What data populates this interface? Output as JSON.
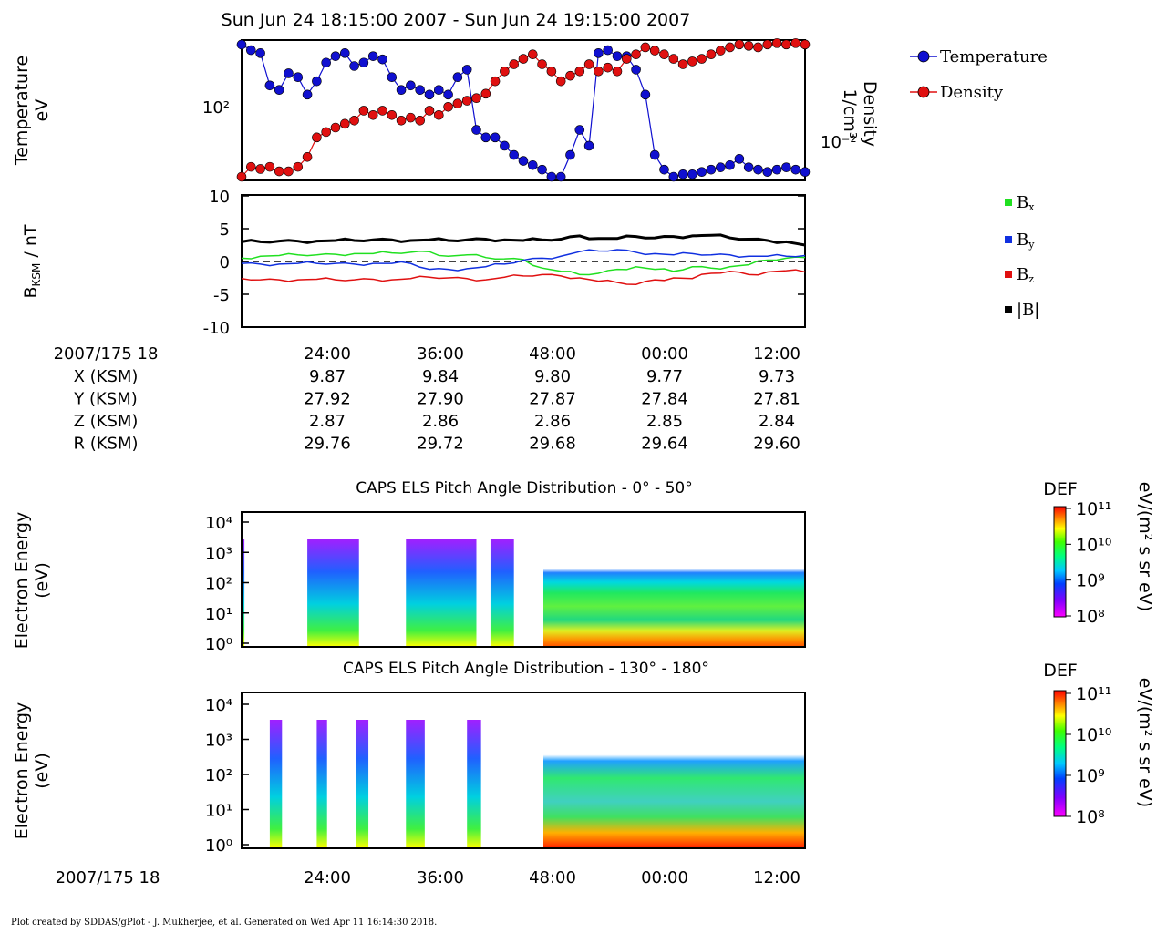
{
  "header": {
    "title": "Sun Jun 24 18:15:00 2007 - Sun Jun 24 19:15:00 2007"
  },
  "colors": {
    "temperature": "#1010d0",
    "density": "#e01010",
    "bx": "#20e020",
    "by": "#1030e0",
    "bz": "#e01010",
    "btot": "#000000"
  },
  "chart_data": [
    {
      "id": "plasma-moments",
      "type": "scatter",
      "ylabel": "Temperature\neV",
      "y2label": "Density\n1/cm³",
      "y_tick_label": "10²",
      "y2_tick_label": "10⁻²",
      "legend": [
        "Temperature",
        "Density"
      ],
      "legend_position": "right",
      "x_minutes": [
        0,
        1,
        2,
        3,
        4,
        5,
        6,
        7,
        8,
        9,
        10,
        11,
        12,
        13,
        14,
        15,
        16,
        17,
        18,
        19,
        20,
        21,
        22,
        23,
        24,
        25,
        26,
        27,
        28,
        29,
        30,
        31,
        32,
        33,
        34,
        35,
        36,
        37,
        38,
        39,
        40,
        41,
        42,
        43,
        44,
        45,
        46,
        47,
        48,
        49,
        50,
        51,
        52,
        53,
        54,
        55,
        56,
        57,
        58,
        59,
        60
      ],
      "series": [
        {
          "name": "Temperature",
          "values": [
            160,
            150,
            145,
            100,
            95,
            115,
            110,
            90,
            105,
            130,
            140,
            145,
            125,
            130,
            140,
            135,
            110,
            95,
            100,
            95,
            90,
            95,
            90,
            110,
            120,
            60,
            55,
            55,
            50,
            45,
            42,
            40,
            38,
            35,
            35,
            45,
            60,
            50,
            145,
            150,
            140,
            140,
            120,
            90,
            45,
            38,
            35,
            36,
            36,
            37,
            38,
            39,
            40,
            43,
            39,
            38,
            37,
            38,
            39,
            38,
            37
          ]
        },
        {
          "name": "Density",
          "values": [
            0.004,
            0.006,
            0.0055,
            0.006,
            0.005,
            0.005,
            0.006,
            0.009,
            0.02,
            0.025,
            0.03,
            0.035,
            0.04,
            0.06,
            0.05,
            0.06,
            0.05,
            0.04,
            0.045,
            0.04,
            0.06,
            0.05,
            0.07,
            0.08,
            0.09,
            0.1,
            0.12,
            0.2,
            0.3,
            0.4,
            0.5,
            0.6,
            0.4,
            0.3,
            0.2,
            0.25,
            0.3,
            0.4,
            0.3,
            0.35,
            0.3,
            0.5,
            0.6,
            0.8,
            0.7,
            0.6,
            0.5,
            0.4,
            0.45,
            0.5,
            0.6,
            0.7,
            0.8,
            0.9,
            0.85,
            0.8,
            0.9,
            0.95,
            0.9,
            0.95,
            0.9
          ]
        }
      ]
    },
    {
      "id": "magnetic-field",
      "type": "line",
      "ylabel": "BKSM / nT",
      "ylim": [
        -10,
        10
      ],
      "y_ticks": [
        10,
        5,
        0,
        -5,
        -10
      ],
      "legend_position": "right",
      "x_minutes": [
        0,
        2,
        4,
        6,
        8,
        10,
        12,
        14,
        16,
        18,
        20,
        22,
        24,
        26,
        28,
        30,
        32,
        34,
        36,
        38,
        40,
        42,
        44,
        46,
        48,
        50,
        52,
        54,
        56,
        58,
        60
      ],
      "series": [
        {
          "name": "Bx",
          "label_main": "B",
          "label_sub": "x",
          "values": [
            0.5,
            0.8,
            0.9,
            1.0,
            1.0,
            1.1,
            1.2,
            1.2,
            1.3,
            1.4,
            1.5,
            0.8,
            1.0,
            0.6,
            0.4,
            0.3,
            -1.0,
            -1.5,
            -2.0,
            -1.8,
            -1.2,
            -0.8,
            -1.2,
            -1.5,
            -0.8,
            -1.0,
            -0.8,
            -0.5,
            0.2,
            0.5,
            0.6
          ]
        },
        {
          "name": "By",
          "label_main": "B",
          "label_sub": "y",
          "values": [
            -0.3,
            -0.4,
            -0.4,
            -0.3,
            -0.3,
            -0.3,
            -0.4,
            -0.3,
            -0.3,
            -0.3,
            -1.2,
            -1.2,
            -1.1,
            -0.8,
            -0.4,
            0.2,
            0.5,
            0.8,
            1.5,
            1.6,
            1.8,
            1.4,
            1.2,
            1.0,
            1.2,
            1.0,
            1.0,
            0.8,
            0.8,
            0.8,
            0.9
          ]
        },
        {
          "name": "Bz",
          "label_main": "B",
          "label_sub": "z",
          "values": [
            -2.6,
            -2.8,
            -2.8,
            -2.8,
            -2.7,
            -2.8,
            -2.8,
            -2.7,
            -2.8,
            -2.6,
            -2.4,
            -2.5,
            -2.6,
            -2.8,
            -2.4,
            -2.2,
            -2.0,
            -2.2,
            -2.5,
            -3.0,
            -3.2,
            -3.5,
            -2.8,
            -2.5,
            -2.6,
            -1.8,
            -1.5,
            -2.0,
            -1.6,
            -1.4,
            -1.6
          ]
        },
        {
          "name": "|B|",
          "label_main": "|B|",
          "label_sub": "",
          "values": [
            3.0,
            3.0,
            3.1,
            3.1,
            3.1,
            3.2,
            3.2,
            3.3,
            3.3,
            3.2,
            3.3,
            3.2,
            3.3,
            3.4,
            3.3,
            3.2,
            3.3,
            3.4,
            3.9,
            3.5,
            3.5,
            3.8,
            3.6,
            3.8,
            3.9,
            4.0,
            3.6,
            3.4,
            3.2,
            3.0,
            2.5
          ]
        }
      ]
    }
  ],
  "ephemeris": {
    "date_label": "2007/175 18",
    "ticks": [
      "24:00",
      "36:00",
      "48:00",
      "00:00",
      "12:00"
    ],
    "rows": [
      {
        "label": "X (KSM)",
        "values": [
          "9.87",
          "9.84",
          "9.80",
          "9.77",
          "9.73"
        ]
      },
      {
        "label": "Y (KSM)",
        "values": [
          "27.92",
          "27.90",
          "27.87",
          "27.84",
          "27.81"
        ]
      },
      {
        "label": "Z (KSM)",
        "values": [
          "2.87",
          "2.86",
          "2.86",
          "2.85",
          "2.84"
        ]
      },
      {
        "label": "R (KSM)",
        "values": [
          "29.76",
          "29.72",
          "29.68",
          "29.64",
          "29.60"
        ]
      }
    ]
  },
  "spectrograms": [
    {
      "title": "CAPS ELS Pitch Angle Distribution - 0° - 50°",
      "ylabel_1": "Electron Energy",
      "ylabel_2": "(eV)",
      "y_ticks": [
        "10⁴",
        "10³",
        "10²",
        "10¹",
        "10⁰"
      ],
      "colorbar_title": "DEF",
      "colorbar_unit": "eV/(m² s sr eV)",
      "colorbar_ticks": [
        "10¹¹",
        "10¹⁰",
        "10⁹",
        "10⁸"
      ],
      "data_gaps_minutes": [
        [
          0,
          0.3
        ],
        [
          7,
          12.5
        ],
        [
          17.5,
          25
        ],
        [
          26.5,
          29
        ]
      ]
    },
    {
      "title": "CAPS ELS Pitch Angle Distribution - 130° - 180°",
      "ylabel_1": "Electron Energy",
      "ylabel_2": "(eV)",
      "y_ticks": [
        "10⁴",
        "10³",
        "10²",
        "10¹",
        "10⁰"
      ],
      "colorbar_title": "DEF",
      "colorbar_unit": "eV/(m² s sr eV)",
      "colorbar_ticks": [
        "10¹¹",
        "10¹⁰",
        "10⁹",
        "10⁸"
      ],
      "data_gaps_minutes": [
        [
          3,
          4.3
        ],
        [
          8,
          9.1
        ],
        [
          12.2,
          13.5
        ],
        [
          17.5,
          19.5
        ],
        [
          24,
          25.5
        ]
      ]
    }
  ],
  "bottom_axis": {
    "date_label": "2007/175 18",
    "ticks": [
      "24:00",
      "36:00",
      "48:00",
      "00:00",
      "12:00"
    ]
  },
  "footer": "Plot created by SDDAS/gPlot - J. Mukherjee, et al.  Generated on Wed Apr 11 16:14:30 2018."
}
